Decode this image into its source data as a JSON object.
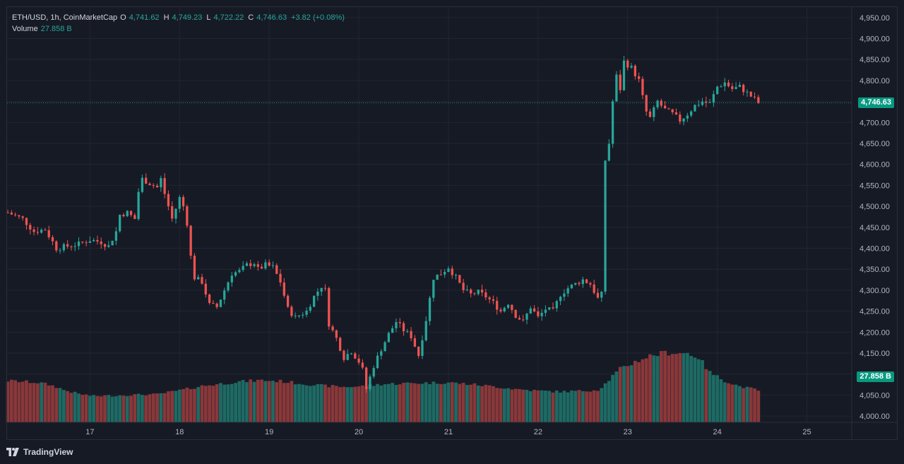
{
  "legend": {
    "symbol": "ETH/USD, 1h, CoinMarketCap",
    "o_label": "O",
    "o_value": "4,741.62",
    "h_label": "H",
    "h_value": "4,749.23",
    "l_label": "L",
    "l_value": "4,722.22",
    "c_label": "C",
    "c_value": "4,746.63",
    "change": "+3.82 (+0.08%)",
    "volume_label": "Volume",
    "volume_value": "27.858 B"
  },
  "tags": {
    "last_price": "4,746.63",
    "last_volume": "27.858 B"
  },
  "footer": {
    "brand": "TradingView"
  },
  "colors": {
    "up": "#26a69a",
    "down": "#ef5350",
    "grid": "#232632",
    "background": "#161a25",
    "axis_text": "#b2b5be",
    "last_line": "#26a69a"
  },
  "chart_data": {
    "type": "candlestick",
    "title": "ETH/USD, 1h, CoinMarketCap",
    "xlabel": "",
    "ylabel": "",
    "x_ticks": [
      "17",
      "18",
      "19",
      "20",
      "21",
      "22",
      "23",
      "24",
      "25"
    ],
    "x_tick_hours": [
      0,
      24,
      48,
      72,
      96,
      120,
      144,
      168,
      192
    ],
    "y_ticks": [
      "4,000.00",
      "4,050.00",
      "4,100.00",
      "4,150.00",
      "4,200.00",
      "4,250.00",
      "4,300.00",
      "4,350.00",
      "4,400.00",
      "4,450.00",
      "4,500.00",
      "4,550.00",
      "4,600.00",
      "4,650.00",
      "4,700.00",
      "4,750.00",
      "4,800.00",
      "4,850.00",
      "4,900.00",
      "4,950.00"
    ],
    "ylim": [
      3985,
      4975
    ],
    "xlim_hours": [
      -22.2,
      204
    ],
    "start_hour": -22,
    "hours_per_candle": 1,
    "last_price": 4746.63,
    "anchors": [
      [
        -22,
        4485
      ],
      [
        -18,
        4470
      ],
      [
        -15,
        4440
      ],
      [
        -12,
        4445
      ],
      [
        -9,
        4400
      ],
      [
        -6,
        4405
      ],
      [
        -3,
        4410
      ],
      [
        0,
        4420
      ],
      [
        3,
        4415
      ],
      [
        5,
        4405
      ],
      [
        7,
        4440
      ],
      [
        8,
        4480
      ],
      [
        10,
        4485
      ],
      [
        12,
        4470
      ],
      [
        13,
        4535
      ],
      [
        14,
        4565
      ],
      [
        16,
        4555
      ],
      [
        18,
        4545
      ],
      [
        19,
        4565
      ],
      [
        20,
        4530
      ],
      [
        22,
        4470
      ],
      [
        24,
        4520
      ],
      [
        25,
        4500
      ],
      [
        26,
        4460
      ],
      [
        27,
        4380
      ],
      [
        28,
        4330
      ],
      [
        30,
        4320
      ],
      [
        32,
        4265
      ],
      [
        34,
        4260
      ],
      [
        36,
        4300
      ],
      [
        38,
        4340
      ],
      [
        40,
        4345
      ],
      [
        42,
        4360
      ],
      [
        44,
        4365
      ],
      [
        45,
        4350
      ],
      [
        47,
        4360
      ],
      [
        49,
        4355
      ],
      [
        51,
        4320
      ],
      [
        53,
        4255
      ],
      [
        55,
        4235
      ],
      [
        58,
        4250
      ],
      [
        60,
        4285
      ],
      [
        62,
        4310
      ],
      [
        63,
        4300
      ],
      [
        64,
        4220
      ],
      [
        66,
        4185
      ],
      [
        68,
        4140
      ],
      [
        70,
        4155
      ],
      [
        72,
        4130
      ],
      [
        73,
        4110
      ],
      [
        74,
        4065
      ],
      [
        76,
        4120
      ],
      [
        78,
        4160
      ],
      [
        80,
        4195
      ],
      [
        82,
        4225
      ],
      [
        84,
        4205
      ],
      [
        86,
        4190
      ],
      [
        88,
        4145
      ],
      [
        90,
        4230
      ],
      [
        92,
        4330
      ],
      [
        94,
        4340
      ],
      [
        96,
        4355
      ],
      [
        98,
        4330
      ],
      [
        100,
        4300
      ],
      [
        102,
        4290
      ],
      [
        104,
        4295
      ],
      [
        106,
        4285
      ],
      [
        108,
        4270
      ],
      [
        110,
        4250
      ],
      [
        112,
        4270
      ],
      [
        114,
        4240
      ],
      [
        116,
        4225
      ],
      [
        118,
        4260
      ],
      [
        120,
        4235
      ],
      [
        122,
        4255
      ],
      [
        124,
        4250
      ],
      [
        126,
        4290
      ],
      [
        128,
        4305
      ],
      [
        130,
        4315
      ],
      [
        132,
        4325
      ],
      [
        134,
        4315
      ],
      [
        136,
        4280
      ],
      [
        137,
        4290
      ],
      [
        138,
        4610
      ],
      [
        139,
        4650
      ],
      [
        140,
        4750
      ],
      [
        141,
        4810
      ],
      [
        142,
        4780
      ],
      [
        143,
        4845
      ],
      [
        145,
        4830
      ],
      [
        147,
        4800
      ],
      [
        148,
        4760
      ],
      [
        149,
        4725
      ],
      [
        150,
        4710
      ],
      [
        152,
        4750
      ],
      [
        154,
        4730
      ],
      [
        156,
        4720
      ],
      [
        158,
        4705
      ],
      [
        160,
        4720
      ],
      [
        162,
        4740
      ],
      [
        164,
        4750
      ],
      [
        166,
        4745
      ],
      [
        168,
        4785
      ],
      [
        170,
        4795
      ],
      [
        172,
        4780
      ],
      [
        174,
        4785
      ],
      [
        176,
        4770
      ],
      [
        178,
        4755
      ],
      [
        179,
        4746.63
      ]
    ],
    "volume": {
      "ylim_fraction": [
        0,
        1
      ],
      "last_value": "27.858 B",
      "anchors": [
        [
          -22,
          0.95
        ],
        [
          -18,
          0.93
        ],
        [
          -14,
          0.91
        ],
        [
          -11,
          0.86
        ],
        [
          -9,
          0.81
        ],
        [
          -7,
          0.74
        ],
        [
          -3,
          0.65
        ],
        [
          1,
          0.6
        ],
        [
          6,
          0.61
        ],
        [
          12,
          0.63
        ],
        [
          18,
          0.64
        ],
        [
          24,
          0.73
        ],
        [
          30,
          0.83
        ],
        [
          34,
          0.87
        ],
        [
          40,
          0.93
        ],
        [
          46,
          0.96
        ],
        [
          51,
          0.94
        ],
        [
          56,
          0.89
        ],
        [
          62,
          0.84
        ],
        [
          68,
          0.81
        ],
        [
          72,
          0.82
        ],
        [
          74,
          0.83
        ],
        [
          78,
          0.87
        ],
        [
          84,
          0.89
        ],
        [
          90,
          0.9
        ],
        [
          96,
          0.91
        ],
        [
          102,
          0.87
        ],
        [
          108,
          0.82
        ],
        [
          114,
          0.76
        ],
        [
          120,
          0.72
        ],
        [
          126,
          0.7
        ],
        [
          132,
          0.72
        ],
        [
          136,
          0.74
        ],
        [
          138,
          0.88
        ],
        [
          140,
          1.06
        ],
        [
          142,
          1.22
        ],
        [
          146,
          1.38
        ],
        [
          150,
          1.52
        ],
        [
          154,
          1.59
        ],
        [
          160,
          1.58
        ],
        [
          163,
          1.48
        ],
        [
          166,
          1.14
        ],
        [
          170,
          0.95
        ],
        [
          174,
          0.82
        ],
        [
          179,
          0.74
        ]
      ]
    }
  }
}
